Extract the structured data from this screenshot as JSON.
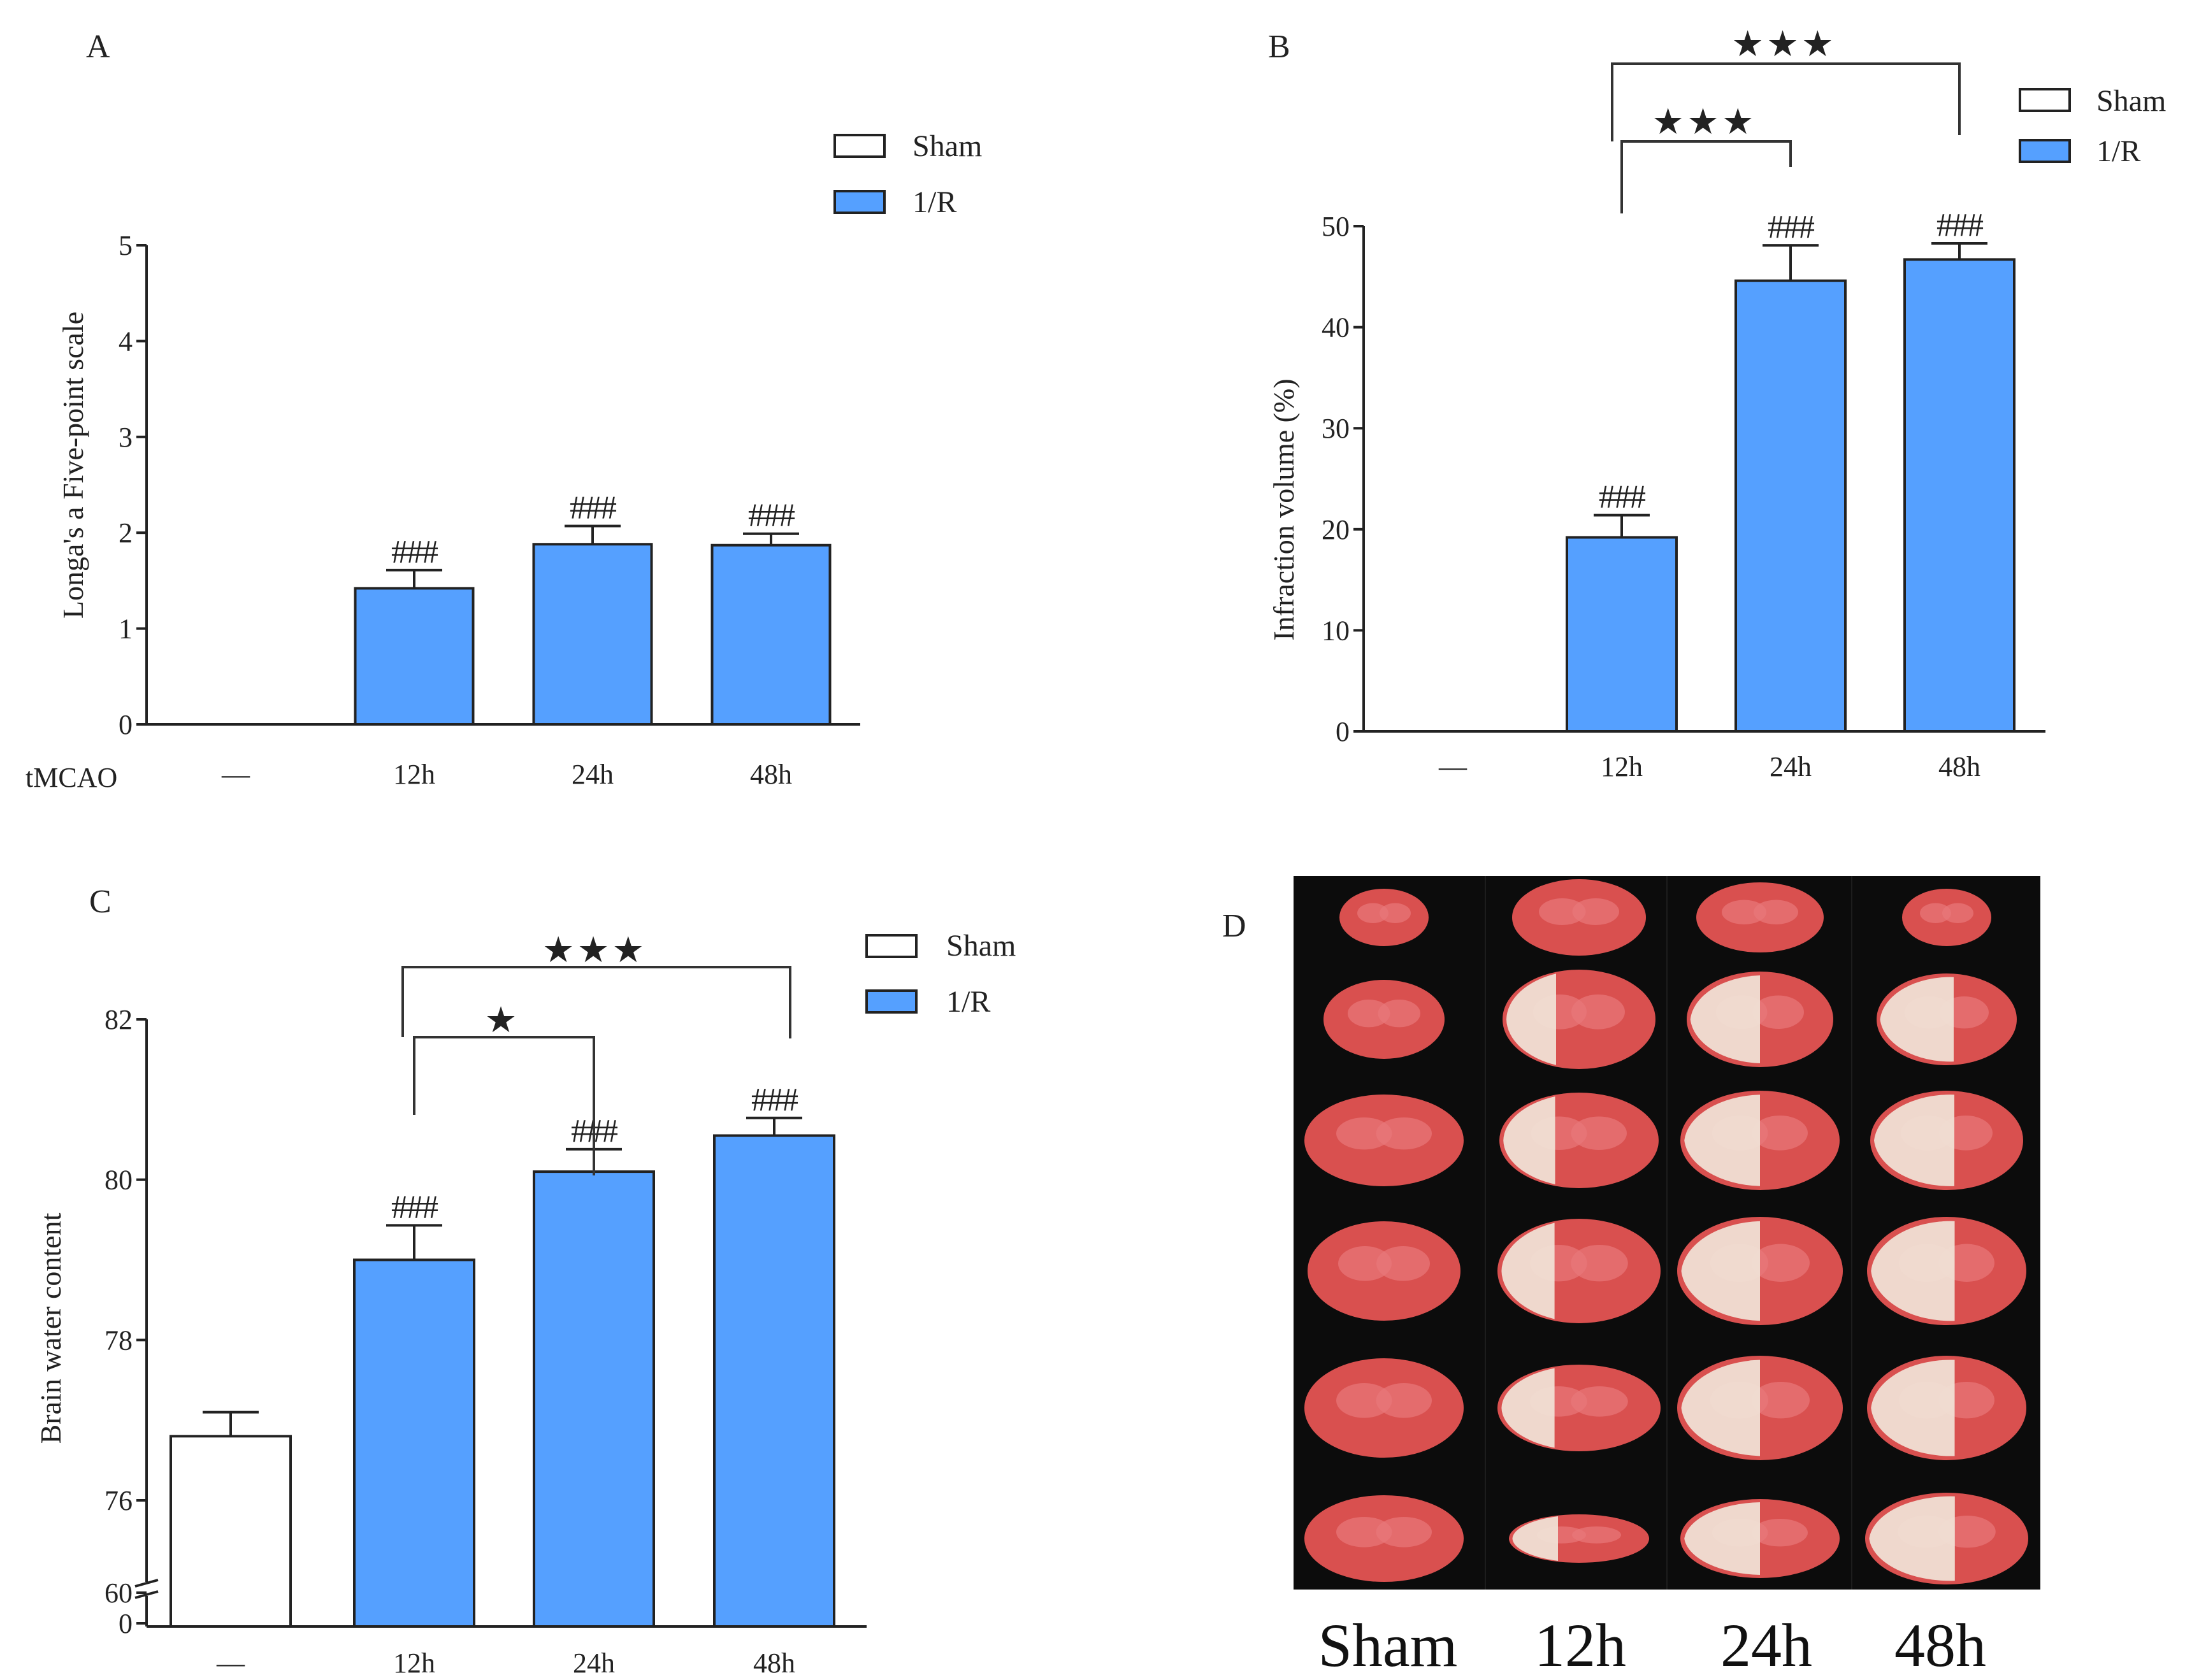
{
  "colors": {
    "sham": "#ffffff",
    "ir": "#55a0ff",
    "stroke": "#222222",
    "photo_bg": "#0c0c0c"
  },
  "legend": {
    "sham": "Sham",
    "ir": "1/R"
  },
  "chart_data": [
    {
      "panel": "A",
      "type": "bar",
      "ylabel": "Longa's a Five-point scale",
      "xlabel_prefix": "tMCAO",
      "categories": [
        "—",
        "12h",
        "24h",
        "48h"
      ],
      "values": [
        0,
        1.42,
        1.88,
        1.87
      ],
      "errors": [
        0,
        0.19,
        0.19,
        0.12
      ],
      "groups": [
        "Sham",
        "1/R",
        "1/R",
        "1/R"
      ],
      "ylim": [
        0,
        5
      ],
      "yticks": [
        "0",
        "1",
        "2",
        "3",
        "4",
        "5"
      ],
      "annotations": [
        "",
        "###",
        "###",
        "###"
      ],
      "brackets": []
    },
    {
      "panel": "B",
      "type": "bar",
      "ylabel": "Infraction volume (%)",
      "categories": [
        "—",
        "12h",
        "24h",
        "48h"
      ],
      "values": [
        0,
        19.2,
        44.6,
        46.7
      ],
      "errors": [
        0,
        2.2,
        3.5,
        1.6
      ],
      "groups": [
        "Sham",
        "1/R",
        "1/R",
        "1/R"
      ],
      "ylim": [
        0,
        50
      ],
      "yticks": [
        "0",
        "10",
        "20",
        "30",
        "40",
        "50"
      ],
      "annotations": [
        "",
        "###",
        "###",
        "###"
      ],
      "brackets": [
        {
          "from": "12h",
          "to": "24h",
          "label": "★★★"
        },
        {
          "from": "12h",
          "to": "48h",
          "label": "★★★"
        }
      ]
    },
    {
      "panel": "C",
      "type": "bar",
      "ylabel": "Brain water content",
      "categories": [
        "—",
        "12h",
        "24h",
        "48h"
      ],
      "values": [
        76.8,
        79.0,
        80.1,
        80.55
      ],
      "errors": [
        0.3,
        0.43,
        0.28,
        0.22
      ],
      "groups": [
        "Sham",
        "1/R",
        "1/R",
        "1/R"
      ],
      "ylim": [
        75,
        82
      ],
      "axis_break": true,
      "yticks": [
        "0",
        "60",
        "76",
        "78",
        "80",
        "82"
      ],
      "annotations": [
        "",
        "###",
        "###",
        "###"
      ],
      "brackets": [
        {
          "from": "12h",
          "to": "24h",
          "label": "★"
        },
        {
          "from": "12h",
          "to": "48h",
          "label": "★★★"
        }
      ]
    }
  ],
  "panel_d": {
    "panel": "D",
    "column_labels": [
      "Sham",
      "12h",
      "24h",
      "48h"
    ],
    "description": "TTC-stained coronal brain sections, 6 per group"
  }
}
